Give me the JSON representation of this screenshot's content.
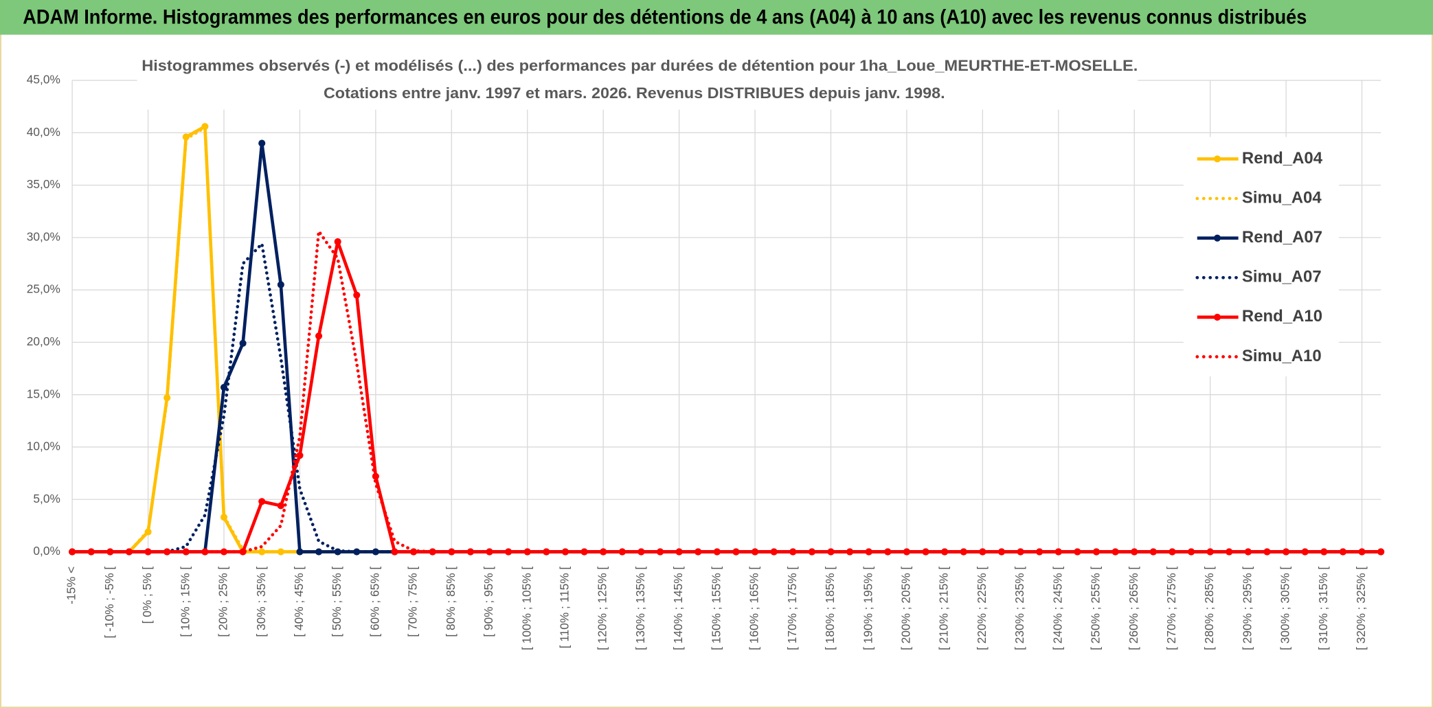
{
  "header": "ADAM Informe. Histogrammes des performances en euros pour des détentions de 4 ans (A04) à 10 ans (A10) avec les revenus connus distribués",
  "chart_data": {
    "type": "line",
    "title": "Histogrammes observés (-) et modélisés (...) des performances par durées de détention pour 1ha_Loue_MEURTHE-ET-MOSELLE.",
    "subtitle": "Cotations entre janv. 1997 et mars. 2026. Revenus DISTRIBUES depuis janv. 1998.",
    "categories": [
      "-15% <",
      null,
      "[ -10% ; -5% [",
      null,
      "[ 0% ; 5% [",
      null,
      "[ 10% ; 15% [",
      null,
      "[ 20% ; 25% [",
      null,
      "[ 30% ; 35% [",
      null,
      "[ 40% ; 45% [",
      null,
      "[ 50% ; 55% [",
      null,
      "[ 60% ; 65% [",
      null,
      "[ 70% ; 75% [",
      null,
      "[ 80% ; 85% [",
      null,
      "[ 90% ; 95% [",
      null,
      "[ 100% ; 105% [",
      null,
      "[ 110% ; 115% [",
      null,
      "[ 120% ; 125% [",
      null,
      "[ 130% ; 135% [",
      null,
      "[ 140% ; 145% [",
      null,
      "[ 150% ; 155% [",
      null,
      "[ 160% ; 165% [",
      null,
      "[ 170% ; 175% [",
      null,
      "[ 180% ; 185% [",
      null,
      "[ 190% ; 195% [",
      null,
      "[ 200% ; 205% [",
      null,
      "[ 210% ; 215% [",
      null,
      "[ 220% ; 225% [",
      null,
      "[ 230% ; 235% [",
      null,
      "[ 240% ; 245% [",
      null,
      "[ 250% ; 255% [",
      null,
      "[ 260% ; 265% [",
      null,
      "[ 270% ; 275% [",
      null,
      "[ 280% ; 285% [",
      null,
      "[ 290% ; 295% [",
      null,
      "[ 300% ; 305% [",
      null,
      "[ 310% ; 315% [",
      null,
      "[ 320% ; 325% [",
      null
    ],
    "series": [
      {
        "name": "Rend_A04",
        "color": "#FFC000",
        "style": "solid",
        "marker": true,
        "values": [
          0,
          0,
          0,
          0,
          1.9,
          14.7,
          39.6,
          40.6,
          3.3,
          0,
          0,
          0,
          0,
          0,
          0,
          0,
          0,
          0,
          0,
          0,
          0,
          0,
          0,
          0,
          0,
          0,
          0,
          0,
          0,
          0,
          0,
          0,
          0,
          0,
          0,
          0,
          0,
          0,
          0,
          0,
          0,
          0,
          0,
          0,
          0,
          0,
          0,
          0,
          0,
          0,
          0,
          0,
          0,
          0,
          0,
          0,
          0,
          0,
          0,
          0,
          0,
          0,
          0,
          0,
          0,
          0,
          0,
          0,
          0,
          0
        ]
      },
      {
        "name": "Simu_A04",
        "color": "#FFC000",
        "style": "dotted",
        "marker": false,
        "values": [
          0,
          0,
          0,
          0,
          2.0,
          14.5,
          39.4,
          40.5,
          3.4,
          0.2,
          0,
          0,
          0,
          0,
          0,
          0,
          0,
          0,
          0,
          0,
          0,
          0,
          0,
          0,
          0,
          0,
          0,
          0,
          0,
          0,
          0,
          0,
          0,
          0,
          0,
          0,
          0,
          0,
          0,
          0,
          0,
          0,
          0,
          0,
          0,
          0,
          0,
          0,
          0,
          0,
          0,
          0,
          0,
          0,
          0,
          0,
          0,
          0,
          0,
          0,
          0,
          0,
          0,
          0,
          0,
          0,
          0,
          0,
          0,
          0
        ]
      },
      {
        "name": "Rend_A07",
        "color": "#002060",
        "style": "solid",
        "marker": true,
        "values": [
          0,
          0,
          0,
          0,
          0,
          0,
          0,
          0,
          15.7,
          19.9,
          39.0,
          25.5,
          0,
          0,
          0,
          0,
          0,
          0,
          0,
          0,
          0,
          0,
          0,
          0,
          0,
          0,
          0,
          0,
          0,
          0,
          0,
          0,
          0,
          0,
          0,
          0,
          0,
          0,
          0,
          0,
          0,
          0,
          0,
          0,
          0,
          0,
          0,
          0,
          0,
          0,
          0,
          0,
          0,
          0,
          0,
          0,
          0,
          0,
          0,
          0,
          0,
          0,
          0,
          0,
          0,
          0,
          0,
          0,
          0,
          0
        ]
      },
      {
        "name": "Simu_A07",
        "color": "#002060",
        "style": "dotted",
        "marker": false,
        "values": [
          0,
          0,
          0,
          0,
          0,
          0,
          0.5,
          3.5,
          13.0,
          27.5,
          29.4,
          18.5,
          6.0,
          1.0,
          0.1,
          0,
          0,
          0,
          0,
          0,
          0,
          0,
          0,
          0,
          0,
          0,
          0,
          0,
          0,
          0,
          0,
          0,
          0,
          0,
          0,
          0,
          0,
          0,
          0,
          0,
          0,
          0,
          0,
          0,
          0,
          0,
          0,
          0,
          0,
          0,
          0,
          0,
          0,
          0,
          0,
          0,
          0,
          0,
          0,
          0,
          0,
          0,
          0,
          0,
          0,
          0,
          0,
          0,
          0,
          0
        ]
      },
      {
        "name": "Rend_A10",
        "color": "#FF0000",
        "style": "solid",
        "marker": true,
        "values": [
          0,
          0,
          0,
          0,
          0,
          0,
          0,
          0,
          0,
          0,
          4.8,
          4.4,
          9.2,
          20.6,
          29.6,
          24.5,
          7.2,
          0,
          0,
          0,
          0,
          0,
          0,
          0,
          0,
          0,
          0,
          0,
          0,
          0,
          0,
          0,
          0,
          0,
          0,
          0,
          0,
          0,
          0,
          0,
          0,
          0,
          0,
          0,
          0,
          0,
          0,
          0,
          0,
          0,
          0,
          0,
          0,
          0,
          0,
          0,
          0,
          0,
          0,
          0,
          0,
          0,
          0,
          0,
          0,
          0,
          0,
          0,
          0,
          0
        ]
      },
      {
        "name": "Simu_A10",
        "color": "#FF0000",
        "style": "dotted",
        "marker": false,
        "values": [
          0,
          0,
          0,
          0,
          0,
          0,
          0,
          0,
          0,
          0,
          0.5,
          2.5,
          11.0,
          30.6,
          28.0,
          18.0,
          6.5,
          1.0,
          0.1,
          0,
          0,
          0,
          0,
          0,
          0,
          0,
          0,
          0,
          0,
          0,
          0,
          0,
          0,
          0,
          0,
          0,
          0,
          0,
          0,
          0,
          0,
          0,
          0,
          0,
          0,
          0,
          0,
          0,
          0,
          0,
          0,
          0,
          0,
          0,
          0,
          0,
          0,
          0,
          0,
          0,
          0,
          0,
          0,
          0,
          0,
          0,
          0,
          0,
          0,
          0
        ]
      }
    ],
    "ylim": [
      0,
      45
    ],
    "yticks": [
      {
        "value": 0,
        "label": "0,0%"
      },
      {
        "value": 5,
        "label": "5,0%"
      },
      {
        "value": 10,
        "label": "10,0%"
      },
      {
        "value": 15,
        "label": "15,0%"
      },
      {
        "value": 20,
        "label": "20,0%"
      },
      {
        "value": 25,
        "label": "25,0%"
      },
      {
        "value": 30,
        "label": "30,0%"
      },
      {
        "value": 35,
        "label": "35,0%"
      },
      {
        "value": 40,
        "label": "40,0%"
      },
      {
        "value": 45,
        "label": "45,0%"
      }
    ],
    "grid": true,
    "legend": "right"
  }
}
